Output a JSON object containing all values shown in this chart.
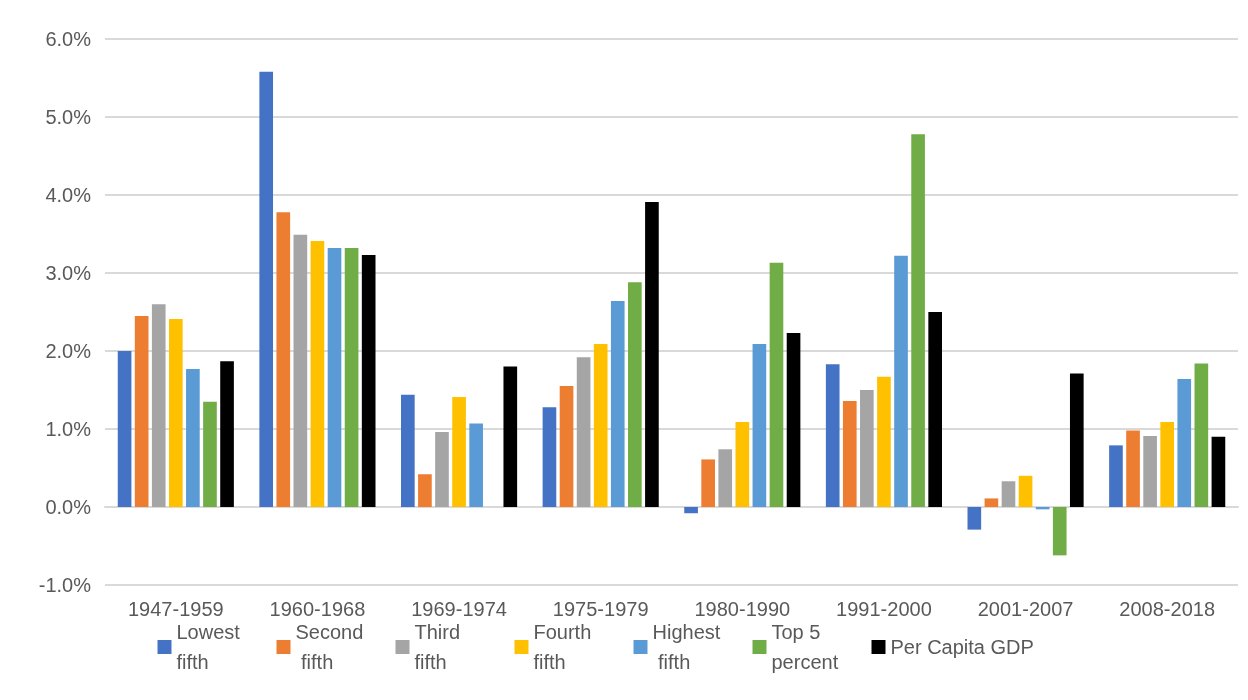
{
  "chart_data": {
    "type": "bar",
    "categories": [
      "1947-1959",
      "1960-1968",
      "1969-1974",
      "1975-1979",
      "1980-1990",
      "1991-2000",
      "2001-2007",
      "2008-2018"
    ],
    "series": [
      {
        "name": "Lowest fifth",
        "color": "#4472c4",
        "values": [
          2.0,
          5.58,
          1.44,
          1.28,
          -0.08,
          1.83,
          -0.29,
          0.79
        ]
      },
      {
        "name": "Second fifth",
        "color": "#ed7d31",
        "values": [
          2.45,
          3.78,
          0.42,
          1.55,
          0.61,
          1.36,
          0.11,
          0.98
        ]
      },
      {
        "name": "Third fifth",
        "color": "#a5a5a5",
        "values": [
          2.6,
          3.49,
          0.96,
          1.92,
          0.74,
          1.5,
          0.33,
          0.91
        ]
      },
      {
        "name": "Fourth fifth",
        "color": "#ffc000",
        "values": [
          2.41,
          3.41,
          1.41,
          2.09,
          1.09,
          1.67,
          0.4,
          1.09
        ]
      },
      {
        "name": "Highest fifth",
        "color": "#5b9bd5",
        "values": [
          1.77,
          3.32,
          1.07,
          2.64,
          2.09,
          3.22,
          -0.03,
          1.64
        ]
      },
      {
        "name": "Top 5 percent",
        "color": "#70ad47",
        "values": [
          1.35,
          3.32,
          0.0,
          2.88,
          3.13,
          4.78,
          -0.62,
          1.84
        ]
      },
      {
        "name": "Per Capita GDP",
        "color": "#000000",
        "values": [
          1.87,
          3.23,
          1.8,
          3.91,
          2.23,
          2.5,
          1.71,
          0.9
        ]
      }
    ],
    "ylim": [
      -1,
      6
    ],
    "yticks": [
      {
        "value": -1,
        "label": "-1.0%"
      },
      {
        "value": 0,
        "label": "0.0%"
      },
      {
        "value": 1,
        "label": "1.0%"
      },
      {
        "value": 2,
        "label": "2.0%"
      },
      {
        "value": 3,
        "label": "3.0%"
      },
      {
        "value": 4,
        "label": "4.0%"
      },
      {
        "value": 5,
        "label": "5.0%"
      },
      {
        "value": 6,
        "label": "6.0%"
      }
    ],
    "grid": "y",
    "legend": "bottom"
  }
}
